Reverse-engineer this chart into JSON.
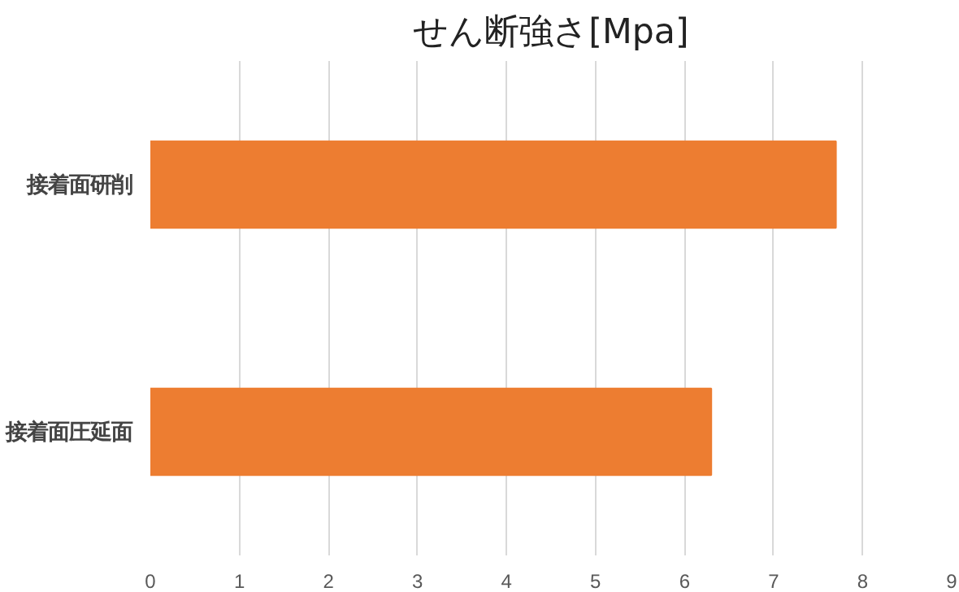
{
  "chart_data": {
    "type": "bar",
    "orientation": "horizontal",
    "title": "せん断強さ[Mpa]",
    "categories": [
      "接着面研削",
      "接着面圧延面"
    ],
    "values": [
      7.7,
      6.3
    ],
    "color": "#ed7d31",
    "xlim": [
      0,
      9
    ],
    "xticks": [
      0,
      1,
      2,
      3,
      4,
      5,
      6,
      7,
      8,
      9
    ],
    "grid": "x"
  }
}
